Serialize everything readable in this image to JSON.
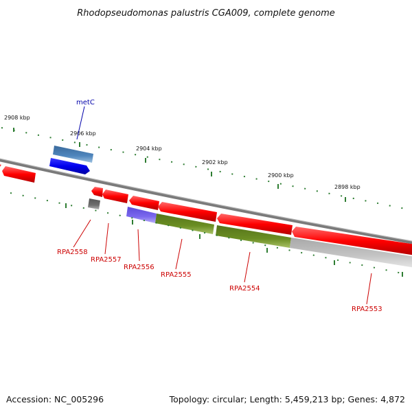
{
  "title": "Rhodopseudomonas palustris CGA009, complete genome",
  "footer": {
    "accession": "Accession: NC_005296",
    "topology": "Topology: circular; Length: 5,459,213 bp; Genes: 4,872"
  },
  "ticks": [
    "2908 kbp",
    "2906 kbp",
    "2904 kbp",
    "2902 kbp",
    "2900 kbp",
    "2898 kbp"
  ],
  "genes": [
    {
      "name": "metC",
      "color": "#0000aa"
    },
    {
      "name": "RPA2558",
      "color": "#cc0000"
    },
    {
      "name": "RPA2557",
      "color": "#cc0000"
    },
    {
      "name": "RPA2556",
      "color": "#cc0000"
    },
    {
      "name": "RPA2555",
      "color": "#cc0000"
    },
    {
      "name": "RPA2554",
      "color": "#cc0000"
    },
    {
      "name": "RPA2553",
      "color": "#cc0000"
    }
  ],
  "colors": {
    "forward_gene": "#ff0000",
    "metC_gene": "#0000ee",
    "metC_feature": "#4a7fb5",
    "cog_olive": "#6b8e23",
    "cog_purple": "#7b68ee",
    "cog_gray": "#bfbfbf",
    "backbone": "#808080",
    "tick": "#2e7d32"
  }
}
